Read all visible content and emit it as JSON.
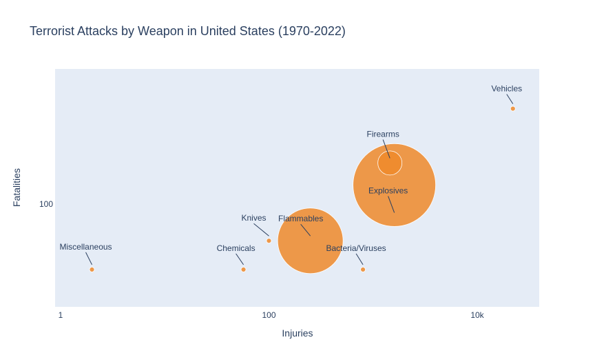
{
  "chart_data": {
    "type": "scatter",
    "title": "Terrorist Attacks by Weapon in United States (1970-2022)",
    "xlabel": "Injuries",
    "ylabel": "Fatalities",
    "x_scale": "log",
    "y_scale": "log",
    "xlim": [
      1,
      40000
    ],
    "ylim": [
      13,
      6000
    ],
    "x_ticks": [
      {
        "value": 1,
        "label": "1"
      },
      {
        "value": 100,
        "label": "100"
      },
      {
        "value": 10000,
        "label": "10k"
      }
    ],
    "y_ticks": [
      {
        "value": 100,
        "label": "100"
      }
    ],
    "grid": false,
    "marker_color": "#ef8a2a",
    "points": [
      {
        "label": "Vehicles",
        "x": 22000,
        "y": 2500,
        "size": 4
      },
      {
        "label": "Firearms",
        "x": 1450,
        "y": 400,
        "size": 35
      },
      {
        "label": "Explosives",
        "x": 1600,
        "y": 190,
        "size": 120
      },
      {
        "label": "Flammables",
        "x": 250,
        "y": 29,
        "size": 95
      },
      {
        "label": "Knives",
        "x": 100,
        "y": 29,
        "size": 6
      },
      {
        "label": "Miscellaneous",
        "x": 2,
        "y": 11,
        "size": 4
      },
      {
        "label": "Chemicals",
        "x": 57,
        "y": 11,
        "size": 4
      },
      {
        "label": "Bacteria/Viruses",
        "x": 800,
        "y": 11,
        "size": 4
      }
    ]
  }
}
